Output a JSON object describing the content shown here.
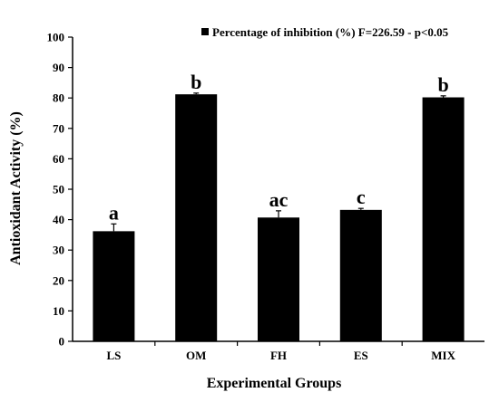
{
  "chart_data": {
    "type": "bar",
    "categories": [
      "LS",
      "OM",
      "FH",
      "ES",
      "MIX"
    ],
    "series": [
      {
        "name": "Percentage of inhibition (%) F=226.59 - p<0.05",
        "values": [
          36.2,
          81.2,
          40.7,
          43.2,
          80.2
        ],
        "errors": [
          2.4,
          0.4,
          2.2,
          0.5,
          0.5
        ],
        "significance": [
          "a",
          "b",
          "ac",
          "c",
          "b"
        ]
      }
    ],
    "xlabel": "Experimental Groups",
    "ylabel": "Antioxidant Activity (%)",
    "ylim": [
      0,
      100
    ],
    "yticks": [
      "0",
      "10",
      "20",
      "30",
      "40",
      "50",
      "60",
      "70",
      "80",
      "90",
      "100"
    ],
    "grid": false,
    "legend": "top-right",
    "bar_color": "#000000"
  }
}
